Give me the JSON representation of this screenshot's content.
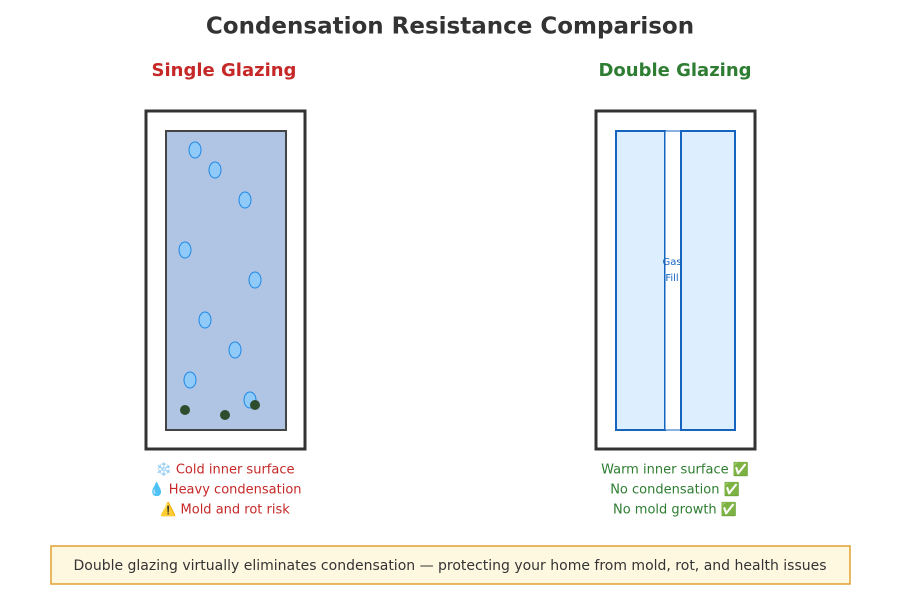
{
  "title": "Condensation Resistance Comparison",
  "single": {
    "heading": "Single Glazing",
    "notes": [
      "❄️ Cold inner surface",
      "💧 Heavy condensation",
      "⚠️ Mold and rot risk"
    ]
  },
  "double": {
    "heading": "Double Glazing",
    "gap_label": [
      "Gas",
      "Fill"
    ],
    "notes": [
      "Warm inner surface ✅",
      "No condensation ✅",
      "No mold growth ✅"
    ]
  },
  "footer": "Double glazing virtually eliminates condensation — protecting your home from mold, rot, and health issues"
}
